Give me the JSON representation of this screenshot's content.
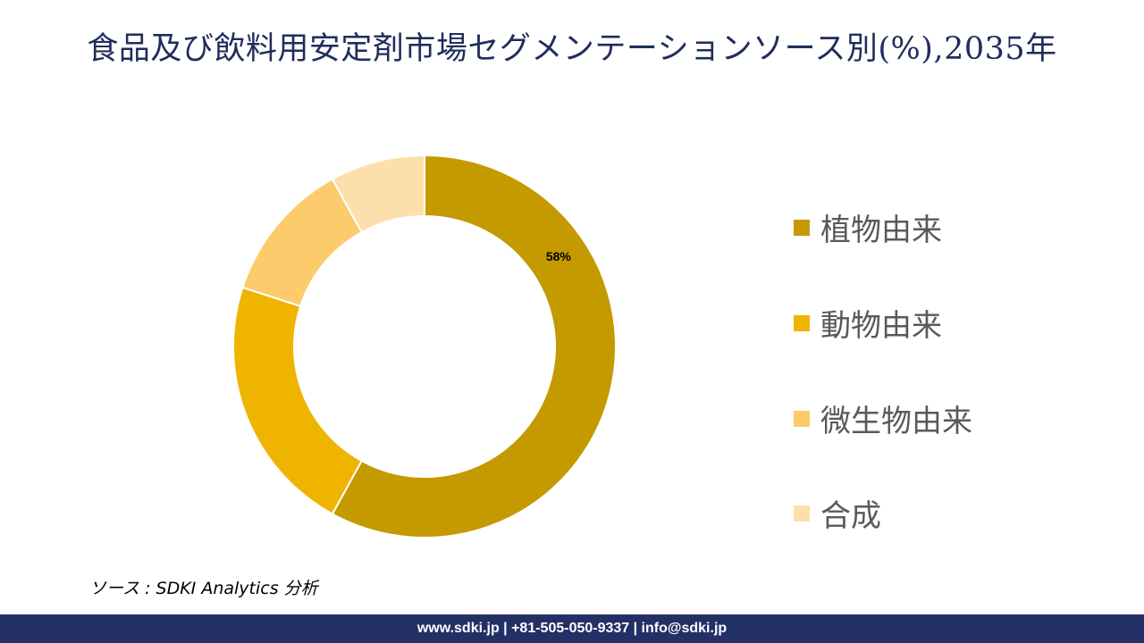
{
  "title": "食品及び飲料用安定剤市場セグメンテーションソース別(%),2035年",
  "chart_data": {
    "type": "pie",
    "donut": true,
    "title": "食品及び飲料用安定剤市場セグメンテーションソース別(%),2035年",
    "categories": [
      "植物由来",
      "動物由来",
      "微生物由来",
      "合成"
    ],
    "values": [
      58,
      22,
      12,
      8
    ],
    "colors": [
      "#C49A00",
      "#EFB400",
      "#FCCB6C",
      "#FDDFAB"
    ],
    "data_labels": [
      "58%",
      "",
      "",
      ""
    ],
    "legend_position": "right"
  },
  "source": "ソース : SDKI Analytics 分析",
  "footer": "www.sdki.jp | +81-505-050-9337 | info@sdki.jp"
}
